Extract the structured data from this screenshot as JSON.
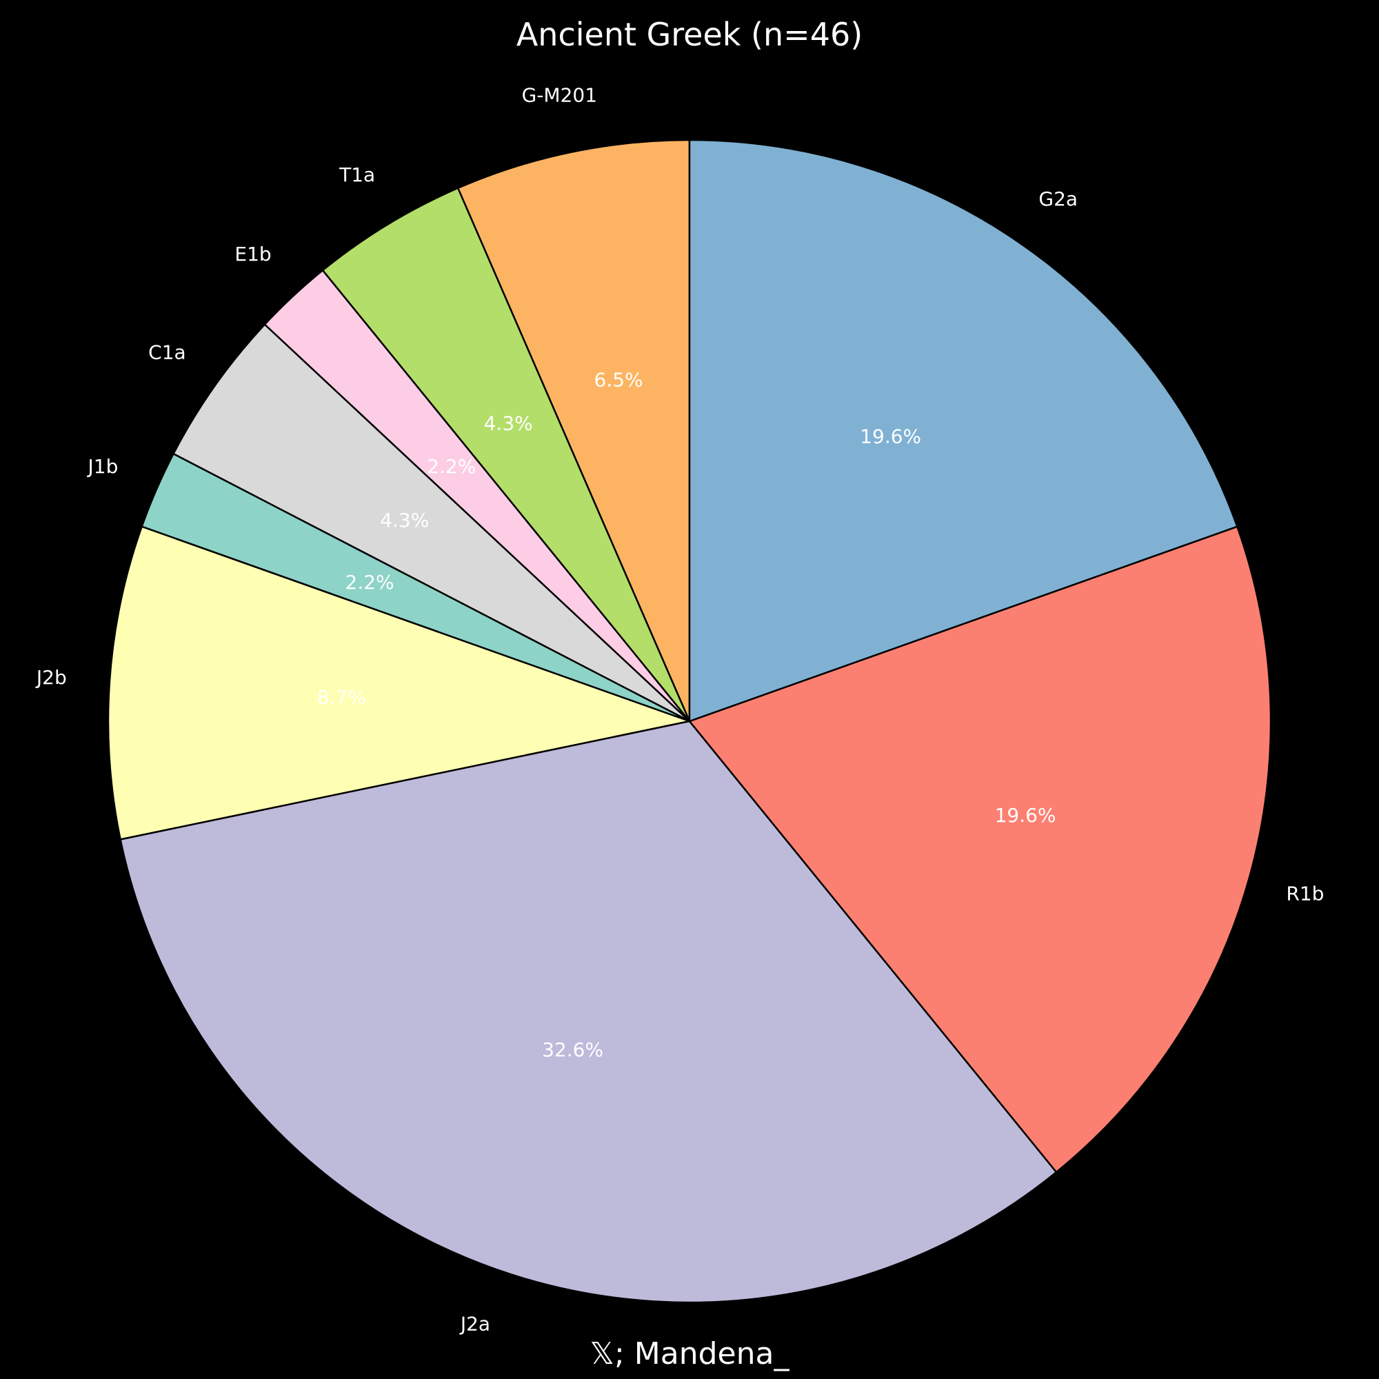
{
  "chart_data": {
    "type": "pie",
    "title": "Ancient Greek (n=46)",
    "credit": "𝕏; Mandena_",
    "start_angle_deg": 90,
    "direction": "counterclockwise",
    "slices": [
      {
        "label": "G-M201",
        "count": 3,
        "pct_label": "6.5%",
        "color": "#fdb462"
      },
      {
        "label": "T1a",
        "count": 2,
        "pct_label": "4.3%",
        "color": "#b3de69"
      },
      {
        "label": "E1b",
        "count": 1,
        "pct_label": "2.2%",
        "color": "#fccde5"
      },
      {
        "label": "C1a",
        "count": 2,
        "pct_label": "4.3%",
        "color": "#d9d9d9"
      },
      {
        "label": "J1b",
        "count": 1,
        "pct_label": "2.2%",
        "color": "#8dd3c7"
      },
      {
        "label": "J2b",
        "count": 4,
        "pct_label": "8.7%",
        "color": "#ffffb3"
      },
      {
        "label": "J2a",
        "count": 15,
        "pct_label": "32.6%",
        "color": "#bebada"
      },
      {
        "label": "R1b",
        "count": 9,
        "pct_label": "19.6%",
        "color": "#fb8072"
      },
      {
        "label": "G2a",
        "count": 9,
        "pct_label": "19.6%",
        "color": "#80b1d3"
      }
    ]
  }
}
